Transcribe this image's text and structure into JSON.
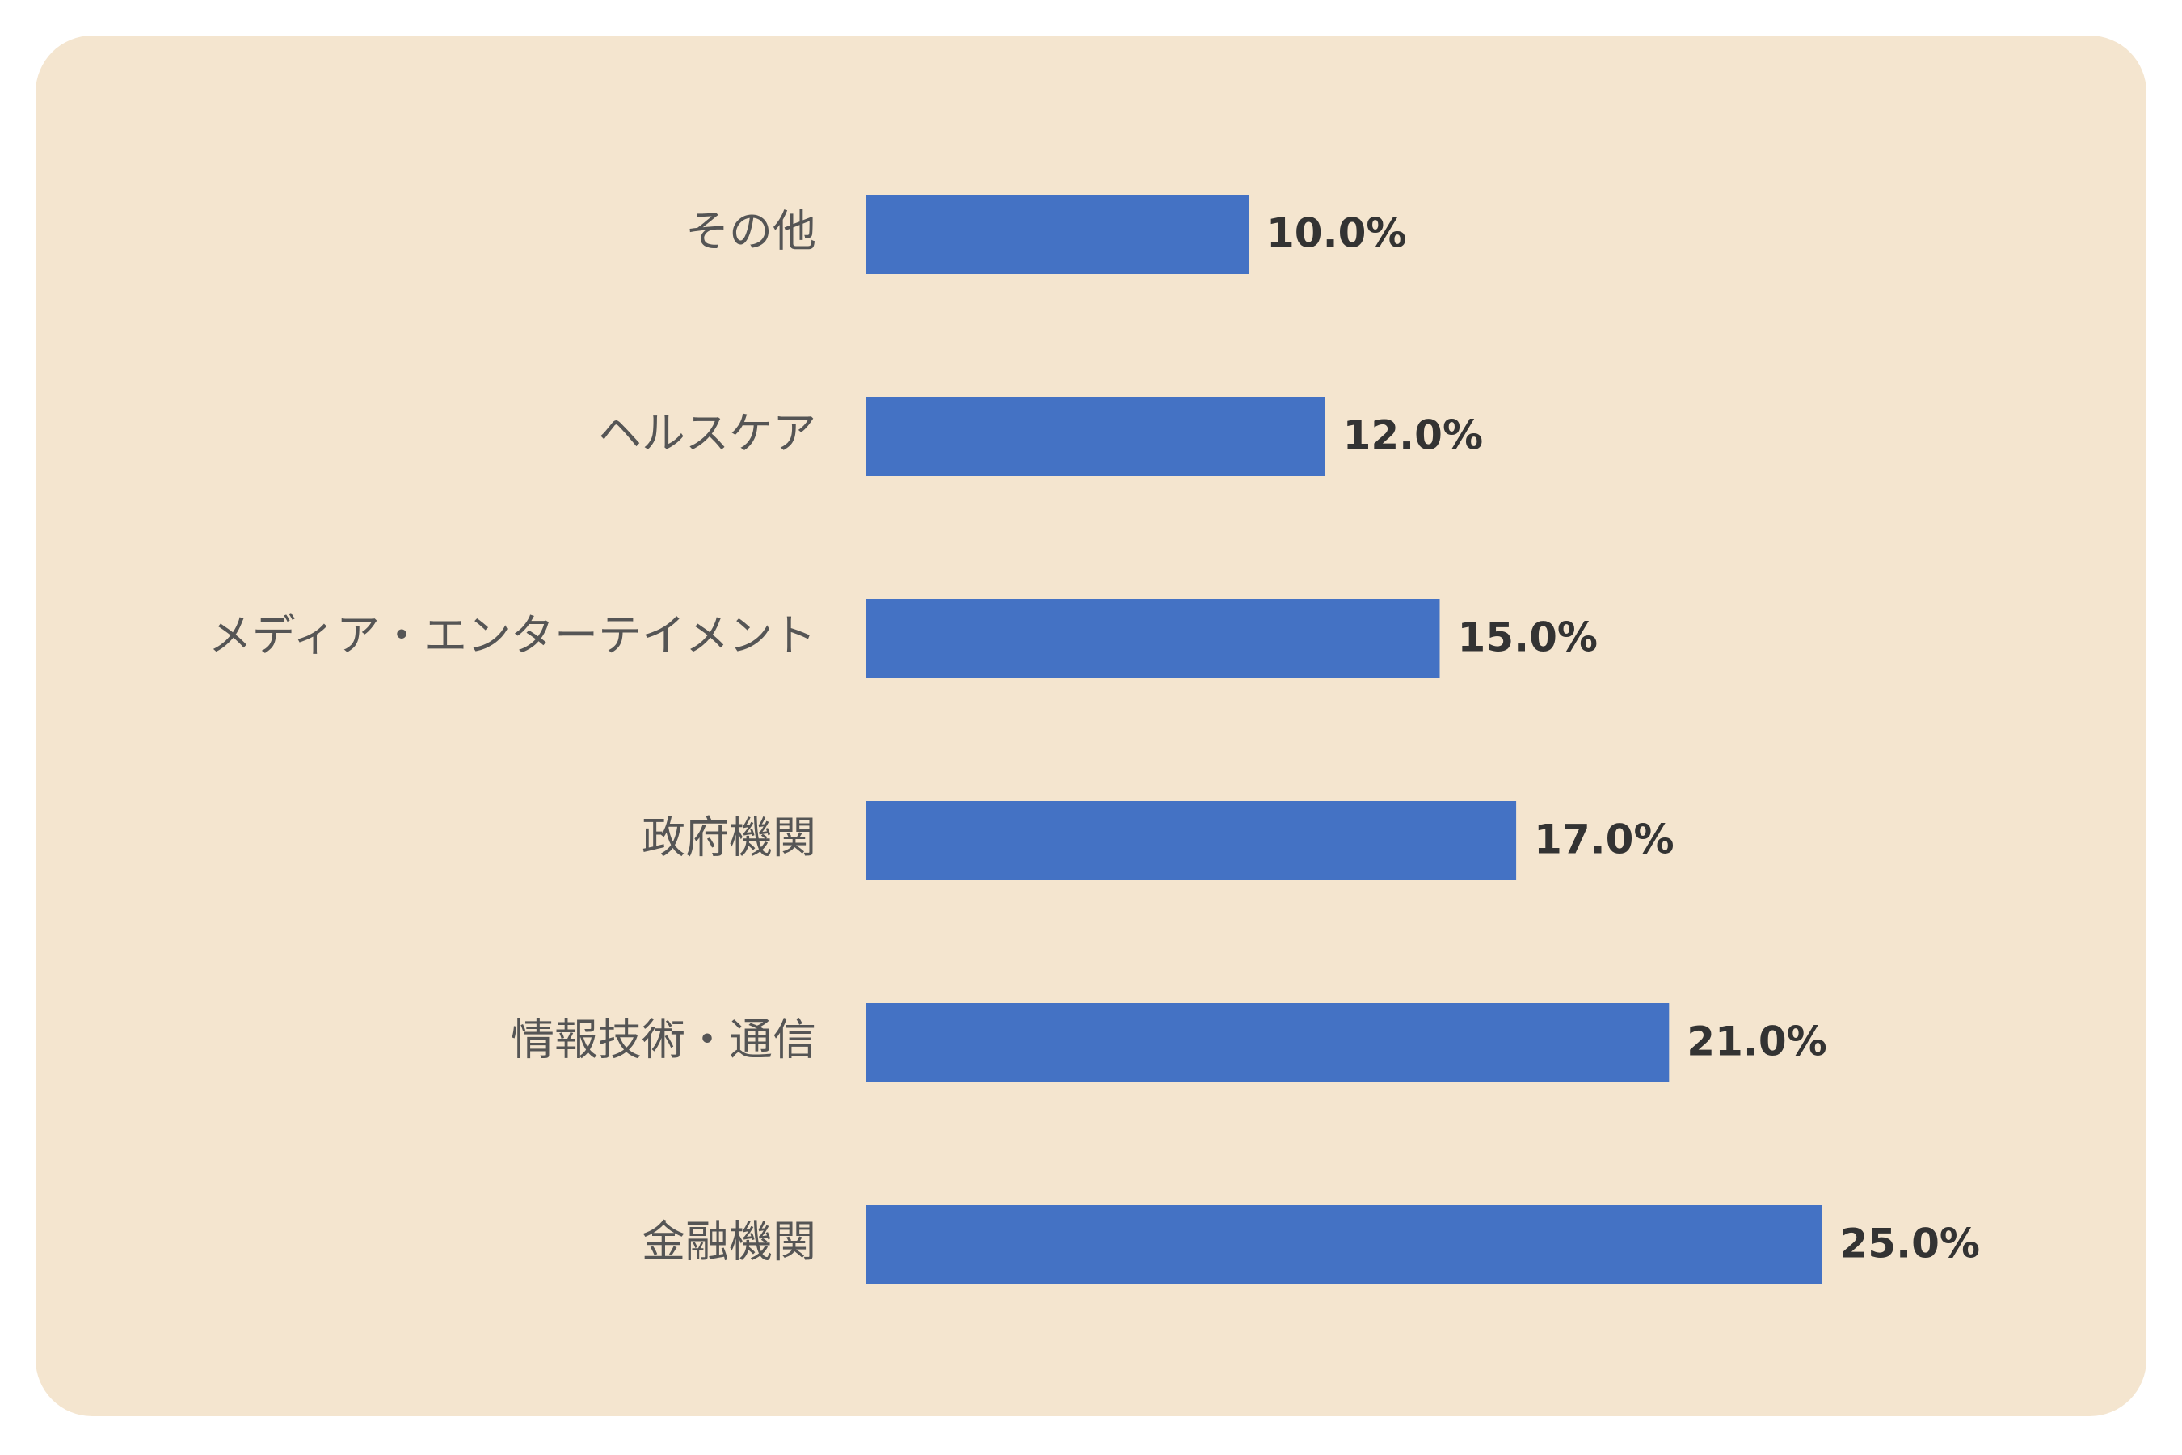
{
  "chart_data": {
    "type": "bar",
    "orientation": "horizontal",
    "categories": [
      "その他",
      "ヘルスケア",
      "メディア・エンターテイメント",
      "政府機関",
      "情報技術・通信",
      "金融機関"
    ],
    "values": [
      10.0,
      12.0,
      15.0,
      17.0,
      21.0,
      25.0
    ],
    "value_labels": [
      "10.0%",
      "12.0%",
      "15.0%",
      "17.0%",
      "21.0%",
      "25.0%"
    ],
    "unit": "%",
    "title": "",
    "xlabel": "",
    "ylabel": "",
    "xlim": [
      0,
      25
    ],
    "grid": false,
    "legend": "none",
    "colors": {
      "bar": "#4472c4",
      "background": "#f4e5cf",
      "category_text": "#555555",
      "value_text": "#333333"
    }
  }
}
